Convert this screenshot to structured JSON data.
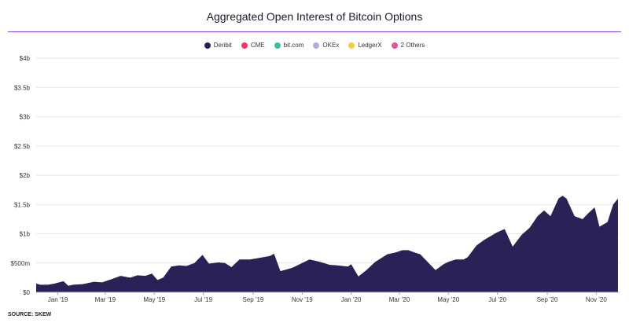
{
  "title": "Aggregated Open Interest of Bitcoin Options",
  "source": "SOURCE: SKEW",
  "legend": [
    {
      "name": "Deribit",
      "color": "#2b2157"
    },
    {
      "name": "CME",
      "color": "#ee3868"
    },
    {
      "name": "bit.com",
      "color": "#3dbdaa"
    },
    {
      "name": "OKEx",
      "color": "#b7aad8"
    },
    {
      "name": "LedgerX",
      "color": "#f4d03f"
    },
    {
      "name": "2 Others",
      "color": "#e8509c"
    }
  ],
  "chart_data": {
    "type": "area",
    "stacked": true,
    "title": "Aggregated Open Interest of Bitcoin Options",
    "xlabel": "",
    "ylabel": "",
    "x_range": [
      "2018-12-05",
      "2020-11-30"
    ],
    "ylim": [
      0,
      4000000000
    ],
    "y_ticks": [
      {
        "value": 0,
        "label": "$0"
      },
      {
        "value": 500000000,
        "label": "$500m"
      },
      {
        "value": 1000000000,
        "label": "$1b"
      },
      {
        "value": 1500000000,
        "label": "$1.5b"
      },
      {
        "value": 2000000000,
        "label": "$2b"
      },
      {
        "value": 2500000000,
        "label": "$2.5b"
      },
      {
        "value": 3000000000,
        "label": "$3b"
      },
      {
        "value": 3500000000,
        "label": "$3.5b"
      },
      {
        "value": 4000000000,
        "label": "$4b"
      }
    ],
    "x_ticks": [
      {
        "date": "2019-01-01",
        "label": "Jan '19"
      },
      {
        "date": "2019-03-01",
        "label": "Mar '19"
      },
      {
        "date": "2019-05-01",
        "label": "May '19"
      },
      {
        "date": "2019-07-01",
        "label": "Jul '19"
      },
      {
        "date": "2019-09-01",
        "label": "Sep '19"
      },
      {
        "date": "2019-11-01",
        "label": "Nov '19"
      },
      {
        "date": "2020-01-01",
        "label": "Jan '20"
      },
      {
        "date": "2020-03-01",
        "label": "Mar '20"
      },
      {
        "date": "2020-05-01",
        "label": "May '20"
      },
      {
        "date": "2020-07-01",
        "label": "Jul '20"
      },
      {
        "date": "2020-09-01",
        "label": "Sep '20"
      },
      {
        "date": "2020-11-01",
        "label": "Nov '20"
      }
    ],
    "grid": true,
    "legend_position": "top",
    "x": [
      "2018-12-05",
      "2018-12-10",
      "2018-12-20",
      "2018-12-28",
      "2019-01-08",
      "2019-01-14",
      "2019-01-20",
      "2019-02-01",
      "2019-02-15",
      "2019-02-25",
      "2019-03-08",
      "2019-03-20",
      "2019-04-01",
      "2019-04-10",
      "2019-04-20",
      "2019-04-28",
      "2019-05-05",
      "2019-05-12",
      "2019-05-22",
      "2019-06-01",
      "2019-06-10",
      "2019-06-20",
      "2019-06-30",
      "2019-07-08",
      "2019-07-20",
      "2019-07-28",
      "2019-08-05",
      "2019-08-15",
      "2019-08-28",
      "2019-09-10",
      "2019-09-22",
      "2019-09-27",
      "2019-10-05",
      "2019-10-20",
      "2019-11-01",
      "2019-11-10",
      "2019-11-20",
      "2019-11-28",
      "2019-12-05",
      "2019-12-15",
      "2019-12-28",
      "2020-01-01",
      "2020-01-10",
      "2020-01-20",
      "2020-01-31",
      "2020-02-15",
      "2020-02-25",
      "2020-03-05",
      "2020-03-12",
      "2020-03-20",
      "2020-03-27",
      "2020-04-05",
      "2020-04-15",
      "2020-04-25",
      "2020-05-01",
      "2020-05-10",
      "2020-05-20",
      "2020-05-25",
      "2020-06-05",
      "2020-06-15",
      "2020-06-25",
      "2020-06-30",
      "2020-07-10",
      "2020-07-20",
      "2020-07-31",
      "2020-08-10",
      "2020-08-20",
      "2020-08-28",
      "2020-09-05",
      "2020-09-15",
      "2020-09-20",
      "2020-09-25",
      "2020-10-05",
      "2020-10-15",
      "2020-10-22",
      "2020-10-30",
      "2020-11-05",
      "2020-11-15",
      "2020-11-22",
      "2020-11-28"
    ],
    "series": [
      {
        "name": "Deribit",
        "color": "#2b2157",
        "values": [
          150000000.0,
          130000000.0,
          130000000.0,
          150000000.0,
          190000000.0,
          110000000.0,
          130000000.0,
          140000000.0,
          180000000.0,
          170000000.0,
          220000000.0,
          280000000.0,
          250000000.0,
          290000000.0,
          280000000.0,
          320000000.0,
          210000000.0,
          250000000.0,
          440000000.0,
          460000000.0,
          450000000.0,
          500000000.0,
          640000000.0,
          490000000.0,
          510000000.0,
          500000000.0,
          430000000.0,
          560000000.0,
          560000000.0,
          590000000.0,
          620000000.0,
          660000000.0,
          360000000.0,
          420000000.0,
          500000000.0,
          560000000.0,
          530000000.0,
          500000000.0,
          470000000.0,
          460000000.0,
          440000000.0,
          480000000.0,
          270000000.0,
          380000000.0,
          520000000.0,
          650000000.0,
          680000000.0,
          720000000.0,
          720000000.0,
          680000000.0,
          650000000.0,
          520000000.0,
          380000000.0,
          480000000.0,
          520000000.0,
          560000000.0,
          560000000.0,
          600000000.0,
          800000000.0,
          900000000.0,
          980000000.0,
          1020000000.0,
          1080000000.0,
          780000000.0,
          980000000.0,
          1100000000.0,
          1300000000.0,
          1400000000.0,
          1300000000.0,
          1600000000.0,
          1650000000.0,
          1600000000.0,
          1300000000.0,
          1250000000.0,
          1350000000.0,
          1450000000.0,
          1120000000.0,
          1200000000.0,
          1500000000.0,
          1600000000.0
        ]
      }
    ]
  }
}
